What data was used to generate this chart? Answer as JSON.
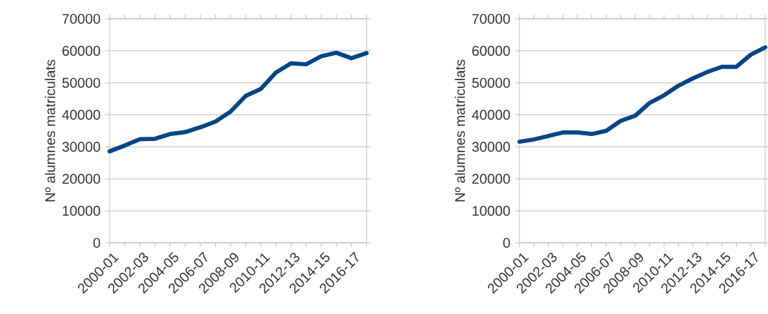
{
  "chart_data": [
    {
      "type": "line",
      "ylabel": "Nº alumnes matriculats",
      "categories": [
        "2000-01",
        null,
        "2002-03",
        null,
        "2004-05",
        null,
        "2006-07",
        null,
        "2008-09",
        null,
        "2010-11",
        null,
        "2012-13",
        null,
        "2014-15",
        null,
        "2016-17",
        null
      ],
      "values": [
        28600,
        30400,
        32400,
        32500,
        34000,
        34600,
        36100,
        37900,
        41000,
        45900,
        48100,
        53200,
        56100,
        55800,
        58300,
        59400,
        57700,
        59300
      ],
      "color": "#004586",
      "ylim": [
        0,
        70000
      ],
      "yticks": [
        0,
        10000,
        20000,
        30000,
        40000,
        50000,
        60000,
        70000
      ],
      "grid": "y"
    },
    {
      "type": "line",
      "ylabel": "Nº alumnes matriculats",
      "categories": [
        "2000-01",
        null,
        "2002-03",
        null,
        "2004-05",
        null,
        "2006-07",
        null,
        "2008-09",
        null,
        "2010-11",
        null,
        "2012-13",
        null,
        "2014-15",
        null,
        "2016-17",
        null
      ],
      "values": [
        31600,
        32300,
        33400,
        34500,
        34500,
        34000,
        35000,
        38100,
        39700,
        43700,
        46100,
        49100,
        51400,
        53400,
        55000,
        55000,
        58800,
        61100
      ],
      "color": "#004586",
      "ylim": [
        0,
        70000
      ],
      "yticks": [
        0,
        10000,
        20000,
        30000,
        40000,
        50000,
        60000,
        70000
      ],
      "grid": "y"
    }
  ]
}
